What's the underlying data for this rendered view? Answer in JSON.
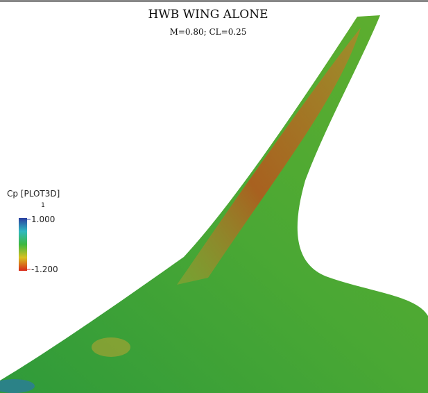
{
  "header": {
    "title": "HWB WING ALONE",
    "subtitle": "M=0.80; CL=0.25"
  },
  "colorbar": {
    "label": "Cp [PLOT3D]",
    "marker": "1",
    "ticks": [
      {
        "value": 1,
        "label": "1.000",
        "color": "#3b4fa8"
      },
      {
        "value": -1.2,
        "label": "-1.200",
        "color": "#d33a2a"
      }
    ]
  }
}
